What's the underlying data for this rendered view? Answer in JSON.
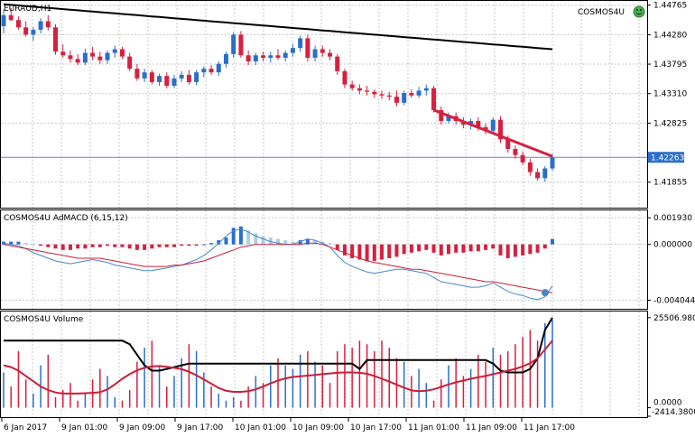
{
  "window": {
    "symbol_title": "EURAUD,H1",
    "ea_label": "COSMOS4U"
  },
  "colors": {
    "bull": "#2a6fc9",
    "bear": "#d6203f",
    "macd_light": "#a9cfe3",
    "grid": "#c9c9c9",
    "trend": "#d6203f",
    "ma": "#000000",
    "price_tag_bg": "#2a6fc9",
    "macd_signal": "#c8203a",
    "macd_main": "#4a86c8",
    "vol_line": "#c8203a",
    "vol_envelope": "#000000"
  },
  "price_panel": {
    "ticks": [
      "1.44765",
      "1.44280",
      "1.43795",
      "1.43310",
      "1.42825",
      "1.41855"
    ],
    "current_price": "1.42263",
    "current_value": 1.42263
  },
  "macd_panel": {
    "title": "COSMOS4U AdMACD (6,15,12)",
    "ticks": [
      "0.001930",
      "0.000000",
      "-0.004044"
    ]
  },
  "volume_panel": {
    "title": "COSMOS4U Volume",
    "ticks": [
      "25506.9800",
      "0.0000",
      "-2414.380000"
    ]
  },
  "time_axis": {
    "labels": [
      "6 Jan 2017",
      "9 Jan 01:00",
      "9 Jan 09:00",
      "9 Jan 17:00",
      "10 Jan 01:00",
      "10 Jan 09:00",
      "10 Jan 17:00",
      "11 Jan 01:00",
      "11 Jan 09:00",
      "11 Jan 17:00"
    ]
  },
  "chart_data": [
    {
      "type": "candlestick",
      "title": "EURAUD,H1",
      "y_ticks": [
        1.44765,
        1.4428,
        1.43795,
        1.4331,
        1.42825,
        1.41855
      ],
      "ylim": [
        1.4145,
        1.4482
      ],
      "current_price": 1.42263,
      "candles": [
        {
          "o": 1.4442,
          "h": 1.447,
          "l": 1.443,
          "c": 1.446
        },
        {
          "o": 1.446,
          "h": 1.4472,
          "l": 1.445,
          "c": 1.4452
        },
        {
          "o": 1.4452,
          "h": 1.4458,
          "l": 1.4436,
          "c": 1.444
        },
        {
          "o": 1.444,
          "h": 1.445,
          "l": 1.4425,
          "c": 1.4428
        },
        {
          "o": 1.4428,
          "h": 1.444,
          "l": 1.4418,
          "c": 1.4436
        },
        {
          "o": 1.4436,
          "h": 1.4455,
          "l": 1.443,
          "c": 1.445
        },
        {
          "o": 1.445,
          "h": 1.446,
          "l": 1.4435,
          "c": 1.444
        },
        {
          "o": 1.444,
          "h": 1.4445,
          "l": 1.4395,
          "c": 1.44
        },
        {
          "o": 1.44,
          "h": 1.4412,
          "l": 1.439,
          "c": 1.4394
        },
        {
          "o": 1.4394,
          "h": 1.4402,
          "l": 1.4382,
          "c": 1.4388
        },
        {
          "o": 1.4388,
          "h": 1.4396,
          "l": 1.4378,
          "c": 1.4382
        },
        {
          "o": 1.4382,
          "h": 1.4405,
          "l": 1.4378,
          "c": 1.4398
        },
        {
          "o": 1.4398,
          "h": 1.4408,
          "l": 1.4386,
          "c": 1.4392
        },
        {
          "o": 1.4392,
          "h": 1.44,
          "l": 1.438,
          "c": 1.4386
        },
        {
          "o": 1.4386,
          "h": 1.4402,
          "l": 1.438,
          "c": 1.4398
        },
        {
          "o": 1.4398,
          "h": 1.441,
          "l": 1.439,
          "c": 1.4404
        },
        {
          "o": 1.4404,
          "h": 1.4408,
          "l": 1.4388,
          "c": 1.4392
        },
        {
          "o": 1.4392,
          "h": 1.4398,
          "l": 1.4368,
          "c": 1.4372
        },
        {
          "o": 1.4372,
          "h": 1.438,
          "l": 1.4352,
          "c": 1.4356
        },
        {
          "o": 1.4356,
          "h": 1.4372,
          "l": 1.435,
          "c": 1.4366
        },
        {
          "o": 1.4366,
          "h": 1.437,
          "l": 1.4346,
          "c": 1.435
        },
        {
          "o": 1.435,
          "h": 1.4364,
          "l": 1.4344,
          "c": 1.436
        },
        {
          "o": 1.436,
          "h": 1.4366,
          "l": 1.434,
          "c": 1.4344
        },
        {
          "o": 1.4344,
          "h": 1.4362,
          "l": 1.434,
          "c": 1.4356
        },
        {
          "o": 1.4356,
          "h": 1.4368,
          "l": 1.435,
          "c": 1.4362
        },
        {
          "o": 1.4362,
          "h": 1.437,
          "l": 1.4346,
          "c": 1.435
        },
        {
          "o": 1.435,
          "h": 1.437,
          "l": 1.4345,
          "c": 1.4366
        },
        {
          "o": 1.4366,
          "h": 1.4376,
          "l": 1.4358,
          "c": 1.4372
        },
        {
          "o": 1.4372,
          "h": 1.4378,
          "l": 1.4362,
          "c": 1.4366
        },
        {
          "o": 1.4366,
          "h": 1.4384,
          "l": 1.436,
          "c": 1.438
        },
        {
          "o": 1.438,
          "h": 1.44,
          "l": 1.4374,
          "c": 1.4396
        },
        {
          "o": 1.4396,
          "h": 1.4432,
          "l": 1.439,
          "c": 1.4428
        },
        {
          "o": 1.4428,
          "h": 1.4434,
          "l": 1.439,
          "c": 1.4394
        },
        {
          "o": 1.4394,
          "h": 1.4402,
          "l": 1.4378,
          "c": 1.4384
        },
        {
          "o": 1.4384,
          "h": 1.4398,
          "l": 1.4378,
          "c": 1.4394
        },
        {
          "o": 1.4394,
          "h": 1.44,
          "l": 1.4384,
          "c": 1.439
        },
        {
          "o": 1.439,
          "h": 1.44,
          "l": 1.4382,
          "c": 1.4394
        },
        {
          "o": 1.4394,
          "h": 1.4404,
          "l": 1.4386,
          "c": 1.439
        },
        {
          "o": 1.439,
          "h": 1.4402,
          "l": 1.4384,
          "c": 1.4398
        },
        {
          "o": 1.4398,
          "h": 1.4412,
          "l": 1.4392,
          "c": 1.4406
        },
        {
          "o": 1.4406,
          "h": 1.4426,
          "l": 1.44,
          "c": 1.4422
        },
        {
          "o": 1.4422,
          "h": 1.4428,
          "l": 1.4384,
          "c": 1.439
        },
        {
          "o": 1.439,
          "h": 1.441,
          "l": 1.4384,
          "c": 1.4404
        },
        {
          "o": 1.4404,
          "h": 1.441,
          "l": 1.4392,
          "c": 1.4398
        },
        {
          "o": 1.4398,
          "h": 1.4404,
          "l": 1.4386,
          "c": 1.4392
        },
        {
          "o": 1.4392,
          "h": 1.4396,
          "l": 1.4362,
          "c": 1.4368
        },
        {
          "o": 1.4368,
          "h": 1.4372,
          "l": 1.434,
          "c": 1.4346
        },
        {
          "o": 1.4346,
          "h": 1.4352,
          "l": 1.4336,
          "c": 1.434
        },
        {
          "o": 1.434,
          "h": 1.4346,
          "l": 1.433,
          "c": 1.4336
        },
        {
          "o": 1.4336,
          "h": 1.4344,
          "l": 1.4328,
          "c": 1.4334
        },
        {
          "o": 1.4334,
          "h": 1.4338,
          "l": 1.4324,
          "c": 1.433
        },
        {
          "o": 1.433,
          "h": 1.4336,
          "l": 1.4322,
          "c": 1.4328
        },
        {
          "o": 1.4328,
          "h": 1.4334,
          "l": 1.432,
          "c": 1.4326
        },
        {
          "o": 1.4326,
          "h": 1.4336,
          "l": 1.431,
          "c": 1.4316
        },
        {
          "o": 1.4316,
          "h": 1.4336,
          "l": 1.4312,
          "c": 1.4332
        },
        {
          "o": 1.4332,
          "h": 1.4338,
          "l": 1.4324,
          "c": 1.4328
        },
        {
          "o": 1.4328,
          "h": 1.4342,
          "l": 1.4324,
          "c": 1.4336
        },
        {
          "o": 1.4336,
          "h": 1.4346,
          "l": 1.4328,
          "c": 1.434
        },
        {
          "o": 1.434,
          "h": 1.4344,
          "l": 1.43,
          "c": 1.4304
        },
        {
          "o": 1.4304,
          "h": 1.431,
          "l": 1.428,
          "c": 1.4286
        },
        {
          "o": 1.4286,
          "h": 1.43,
          "l": 1.4282,
          "c": 1.4294
        },
        {
          "o": 1.4294,
          "h": 1.43,
          "l": 1.428,
          "c": 1.4286
        },
        {
          "o": 1.4286,
          "h": 1.4292,
          "l": 1.4274,
          "c": 1.428
        },
        {
          "o": 1.428,
          "h": 1.429,
          "l": 1.4272,
          "c": 1.4286
        },
        {
          "o": 1.4286,
          "h": 1.4292,
          "l": 1.427,
          "c": 1.4276
        },
        {
          "o": 1.4276,
          "h": 1.4282,
          "l": 1.4264,
          "c": 1.427
        },
        {
          "o": 1.427,
          "h": 1.4292,
          "l": 1.4268,
          "c": 1.4288
        },
        {
          "o": 1.4288,
          "h": 1.4294,
          "l": 1.425,
          "c": 1.4256
        },
        {
          "o": 1.4256,
          "h": 1.4262,
          "l": 1.4234,
          "c": 1.424
        },
        {
          "o": 1.424,
          "h": 1.4246,
          "l": 1.4224,
          "c": 1.423
        },
        {
          "o": 1.423,
          "h": 1.4236,
          "l": 1.4214,
          "c": 1.4218
        },
        {
          "o": 1.4218,
          "h": 1.4224,
          "l": 1.4196,
          "c": 1.4202
        },
        {
          "o": 1.4202,
          "h": 1.4208,
          "l": 1.4188,
          "c": 1.4192
        },
        {
          "o": 1.4192,
          "h": 1.4212,
          "l": 1.4186,
          "c": 1.4208
        },
        {
          "o": 1.4208,
          "h": 1.4232,
          "l": 1.4204,
          "c": 1.4226
        }
      ],
      "ma": [
        1.4478,
        1.4477,
        1.4476,
        1.4475,
        1.4474,
        1.4473,
        1.4472,
        1.4471,
        1.447,
        1.4469,
        1.4468,
        1.4467,
        1.4466,
        1.4465,
        1.4464,
        1.4463,
        1.4462,
        1.4461,
        1.446,
        1.4459,
        1.4458,
        1.4457,
        1.4456,
        1.4455,
        1.4454,
        1.4453,
        1.4452,
        1.4451,
        1.445,
        1.4449,
        1.4448,
        1.4447,
        1.4446,
        1.4445,
        1.4444,
        1.4443,
        1.4442,
        1.4441,
        1.444,
        1.4439,
        1.4438,
        1.4437,
        1.4436,
        1.4435,
        1.4434,
        1.4433,
        1.4432,
        1.4431,
        1.443,
        1.4429,
        1.4428,
        1.4427,
        1.4426,
        1.4425,
        1.4424,
        1.4423,
        1.4422,
        1.4421,
        1.442,
        1.4419,
        1.4418,
        1.4417,
        1.4416,
        1.4415,
        1.4414,
        1.4413,
        1.4412,
        1.4411,
        1.441,
        1.4409,
        1.4408,
        1.4407,
        1.4406,
        1.4405,
        1.4404
      ],
      "trendline": {
        "from_index": 58,
        "to_index": 74,
        "from_value": 1.4304,
        "to_value": 1.4228
      }
    },
    {
      "type": "bar",
      "title": "COSMOS4U AdMACD (6,15,12)",
      "y_ticks": [
        0.00193,
        0.0,
        -0.004044
      ],
      "ylim": [
        -0.0046,
        0.0024
      ],
      "histogram": [
        0.0002,
        0.0002,
        0.0002,
        0.0001,
        0.0,
        -0.0001,
        -0.0002,
        -0.0003,
        -0.0004,
        -0.0004,
        -0.0003,
        -0.0003,
        -0.0002,
        -0.0002,
        -0.0001,
        -0.0002,
        -0.0002,
        -0.0003,
        -0.0004,
        -0.0004,
        -0.0003,
        -0.0002,
        -0.0002,
        -0.0002,
        -0.0001,
        -0.0001,
        -0.0001,
        0.0,
        0.0001,
        0.0003,
        0.0005,
        0.0012,
        0.0013,
        0.001,
        0.0008,
        0.0006,
        0.0005,
        0.0004,
        0.0003,
        0.0002,
        0.0003,
        0.0004,
        0.0003,
        0.0002,
        0.0001,
        -0.0004,
        -0.0008,
        -0.001,
        -0.0011,
        -0.0012,
        -0.0012,
        -0.0011,
        -0.001,
        -0.0009,
        -0.0007,
        -0.0006,
        -0.0005,
        -0.0004,
        -0.0006,
        -0.0008,
        -0.0007,
        -0.0006,
        -0.0006,
        -0.0005,
        -0.0005,
        -0.0004,
        -0.0003,
        -0.0008,
        -0.001,
        -0.0009,
        -0.0008,
        -0.0007,
        -0.0006,
        -0.0003,
        0.0004
      ],
      "main_line": [
        0.0001,
        0.0,
        -0.0001,
        -0.0003,
        -0.0006,
        -0.0008,
        -0.001,
        -0.0012,
        -0.0013,
        -0.0014,
        -0.0013,
        -0.0012,
        -0.0011,
        -0.0012,
        -0.0013,
        -0.0015,
        -0.0016,
        -0.0017,
        -0.0018,
        -0.0019,
        -0.0019,
        -0.0018,
        -0.0017,
        -0.0016,
        -0.0015,
        -0.0013,
        -0.0011,
        -0.0008,
        -0.0004,
        0.0001,
        0.0006,
        0.001,
        0.0011,
        0.0009,
        0.0006,
        0.0004,
        0.0002,
        0.0001,
        0.0,
        0.0,
        0.0002,
        0.0004,
        0.0003,
        0.0001,
        -0.0002,
        -0.0008,
        -0.0013,
        -0.0016,
        -0.0018,
        -0.002,
        -0.0021,
        -0.002,
        -0.0019,
        -0.0018,
        -0.0018,
        -0.0019,
        -0.002,
        -0.0021,
        -0.0024,
        -0.0027,
        -0.0028,
        -0.0029,
        -0.003,
        -0.0031,
        -0.0031,
        -0.003,
        -0.0028,
        -0.0031,
        -0.0034,
        -0.0036,
        -0.0037,
        -0.0039,
        -0.004,
        -0.0038,
        -0.003
      ],
      "signal_line": [
        0.0,
        -0.0001,
        -0.0002,
        -0.0003,
        -0.0004,
        -0.0005,
        -0.0006,
        -0.0007,
        -0.0008,
        -0.0009,
        -0.001,
        -0.001,
        -0.001,
        -0.001,
        -0.0011,
        -0.0012,
        -0.0013,
        -0.0014,
        -0.0015,
        -0.0016,
        -0.0016,
        -0.0016,
        -0.0016,
        -0.0015,
        -0.0015,
        -0.0014,
        -0.0013,
        -0.0012,
        -0.001,
        -0.0008,
        -0.0006,
        -0.0004,
        -0.0002,
        -0.0001,
        0.0,
        0.0,
        0.0,
        0.0,
        0.0,
        0.0,
        0.0,
        0.0001,
        0.0001,
        0.0,
        -0.0002,
        -0.0004,
        -0.0006,
        -0.0008,
        -0.001,
        -0.0012,
        -0.0013,
        -0.0014,
        -0.0015,
        -0.0016,
        -0.0017,
        -0.0018,
        -0.0018,
        -0.0019,
        -0.002,
        -0.0021,
        -0.0022,
        -0.0023,
        -0.0024,
        -0.0025,
        -0.0026,
        -0.0027,
        -0.0027,
        -0.0028,
        -0.0029,
        -0.003,
        -0.0031,
        -0.0032,
        -0.0033,
        -0.0034,
        -0.0035
      ],
      "marker_value": -0.0035
    },
    {
      "type": "bar",
      "title": "COSMOS4U Volume",
      "y_ticks": [
        25506.98,
        0.0,
        -2414.38
      ],
      "ylim": [
        -2414.38,
        27000
      ],
      "volumes": [
        10000,
        6000,
        16000,
        8000,
        4000,
        12000,
        15000,
        3000,
        5000,
        7000,
        2000,
        4000,
        8000,
        11000,
        9000,
        3000,
        2000,
        5000,
        13000,
        17000,
        19000,
        12000,
        6000,
        9000,
        14000,
        18000,
        16000,
        10000,
        6000,
        4000,
        2000,
        3000,
        2000,
        6000,
        9000,
        7000,
        12000,
        14000,
        12000,
        11000,
        15000,
        16000,
        13000,
        12000,
        7000,
        16000,
        18000,
        17000,
        19000,
        18000,
        16000,
        19000,
        17000,
        14000,
        13000,
        9000,
        11000,
        7000,
        2000,
        8000,
        12000,
        14000,
        9000,
        11000,
        15000,
        13000,
        17000,
        15000,
        16000,
        18000,
        20000,
        22000,
        19000,
        24000,
        25000
      ],
      "volume_ma": [
        12000,
        11500,
        10500,
        9000,
        7500,
        6000,
        5000,
        4300,
        4000,
        4000,
        4000,
        4100,
        4200,
        4400,
        5200,
        6600,
        8200,
        9500,
        10600,
        11300,
        11700,
        11800,
        11600,
        11300,
        10900,
        10200,
        9200,
        8000,
        6800,
        5600,
        4800,
        4500,
        4500,
        4700,
        5200,
        6000,
        6900,
        7700,
        8300,
        8700,
        8900,
        9100,
        9300,
        9500,
        9700,
        9900,
        10000,
        10000,
        9900,
        9600,
        9000,
        8200,
        7400,
        6500,
        5700,
        4900,
        4700,
        4800,
        5200,
        5900,
        6600,
        7200,
        7700,
        8200,
        8600,
        9000,
        9500,
        10000,
        10500,
        11000,
        11700,
        12600,
        14000,
        16500,
        19000
      ],
      "envelope": [
        19000,
        19000,
        19000,
        19000,
        19000,
        19000,
        19000,
        19000,
        19000,
        19000,
        19000,
        19000,
        19000,
        19000,
        19000,
        19000,
        19000,
        18000,
        15000,
        12000,
        10500,
        10500,
        11000,
        11500,
        12000,
        12500,
        12500,
        12500,
        12500,
        12500,
        12500,
        12500,
        12500,
        12500,
        12500,
        12500,
        12500,
        12500,
        12500,
        12500,
        12500,
        12500,
        12500,
        12500,
        12500,
        12500,
        12500,
        12500,
        11000,
        13500,
        13500,
        13500,
        13500,
        13500,
        13500,
        13500,
        13500,
        13500,
        13500,
        13500,
        13500,
        13500,
        13500,
        13500,
        13500,
        13500,
        12500,
        10500,
        10000,
        10000,
        10000,
        11000,
        14000,
        22000,
        25500
      ]
    }
  ]
}
